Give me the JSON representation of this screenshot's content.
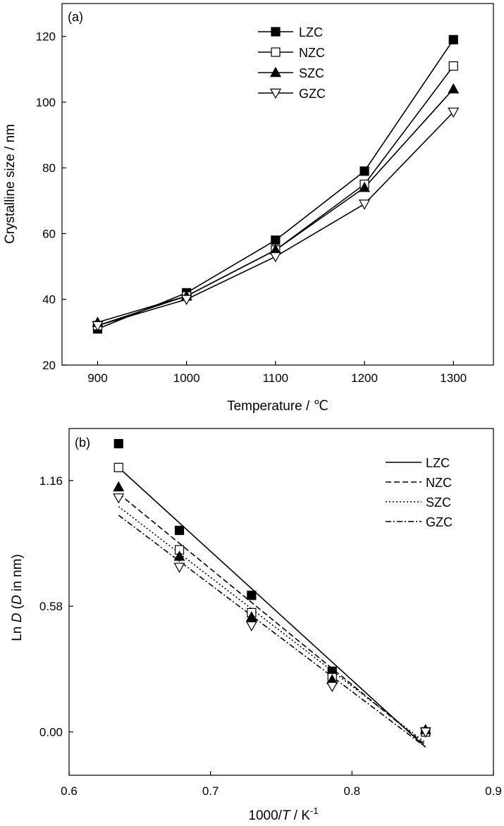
{
  "chart_data": [
    {
      "type": "line",
      "panel_label": "(a)",
      "xlabel": "Temperature / ℃",
      "ylabel": "Crystalline size / nm",
      "xlim": [
        860,
        1345
      ],
      "ylim": [
        20,
        130
      ],
      "xticks": [
        900,
        1000,
        1100,
        1200,
        1300
      ],
      "yticks": [
        20,
        40,
        60,
        80,
        100,
        120
      ],
      "grid": false,
      "legend_position": "top-right",
      "x": [
        900,
        1000,
        1100,
        1200,
        1300
      ],
      "series": [
        {
          "name": "LZC",
          "marker": "square-filled",
          "values": [
            31,
            42,
            58,
            79,
            119
          ]
        },
        {
          "name": "NZC",
          "marker": "square-open",
          "values": [
            32,
            41,
            55,
            75,
            111
          ]
        },
        {
          "name": "SZC",
          "marker": "triangle-up-filled",
          "values": [
            33,
            41,
            55,
            74,
            104
          ]
        },
        {
          "name": "GZC",
          "marker": "triangle-down-open",
          "values": [
            32,
            40,
            53,
            69,
            97
          ]
        }
      ]
    },
    {
      "type": "scatter",
      "panel_label": "(b)",
      "xlabel_parts": [
        "1000/",
        "T",
        " / K",
        "-1"
      ],
      "ylabel_parts": [
        "Ln ",
        "D",
        " (",
        "D",
        " in nm)"
      ],
      "xlim": [
        0.6,
        0.9
      ],
      "ylim": [
        -0.2,
        1.4
      ],
      "xticks": [
        "0.6",
        "0.7",
        "0.8",
        "0.9"
      ],
      "yticks": [
        "0.00",
        "0.58",
        "1.16"
      ],
      "grid": false,
      "legend_position": "top-right",
      "series": [
        {
          "name": "LZC",
          "marker": "square-filled",
          "line": "solid",
          "x": [
            0.635,
            0.678,
            0.729,
            0.786,
            0.852
          ],
          "y": [
            1.33,
            0.93,
            0.63,
            0.28,
            0.0
          ],
          "fit": [
            [
              0.635,
              1.22
            ],
            [
              0.852,
              -0.07
            ]
          ]
        },
        {
          "name": "NZC",
          "marker": "square-open",
          "line": "dashed",
          "x": [
            0.635,
            0.678,
            0.729,
            0.786,
            0.852
          ],
          "y": [
            1.22,
            0.84,
            0.55,
            0.25,
            0.0
          ],
          "fit": [
            [
              0.635,
              1.1
            ],
            [
              0.852,
              -0.06
            ]
          ]
        },
        {
          "name": "SZC",
          "marker": "triangle-up-filled",
          "line": "dotted",
          "x": [
            0.635,
            0.678,
            0.729,
            0.786,
            0.852
          ],
          "y": [
            1.13,
            0.81,
            0.53,
            0.24,
            0.01
          ],
          "fit": [
            [
              0.635,
              1.04
            ],
            [
              0.852,
              -0.05
            ]
          ]
        },
        {
          "name": "GZC",
          "marker": "triangle-down-open",
          "line": "dashdot",
          "x": [
            0.635,
            0.678,
            0.729,
            0.786,
            0.852
          ],
          "y": [
            1.08,
            0.76,
            0.49,
            0.21,
            0.0
          ],
          "fit": [
            [
              0.635,
              1.0
            ],
            [
              0.852,
              -0.07
            ]
          ]
        }
      ]
    }
  ]
}
